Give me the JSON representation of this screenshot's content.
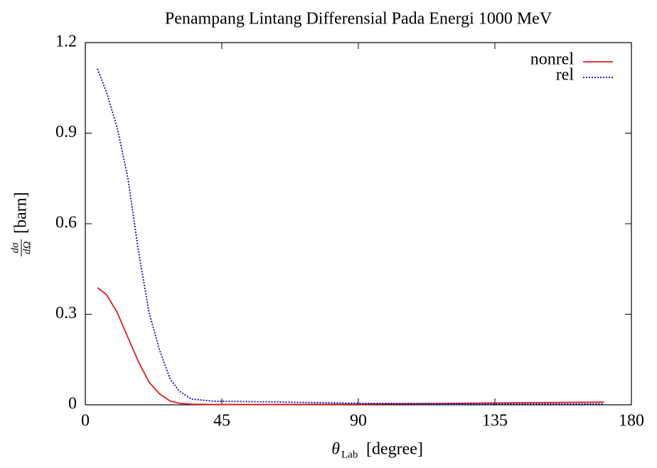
{
  "chart_data": {
    "type": "line",
    "title": "Penampang Lintang Differensial Pada Energi 1000 MeV",
    "x_label": {
      "symbol": "θ",
      "subscript": "Lab",
      "unit": "[degree]"
    },
    "y_label": {
      "numerator": "dσ",
      "denominator": "dΩ",
      "unit": "[barn]"
    },
    "x": [
      4,
      7,
      10.5,
      14,
      17.5,
      21,
      24.5,
      28,
      31,
      35,
      42,
      60,
      90,
      135,
      171
    ],
    "series": [
      {
        "name": "nonrel",
        "color": "#e41a1c",
        "dash": "solid",
        "values": [
          0.388,
          0.365,
          0.306,
          0.224,
          0.143,
          0.075,
          0.036,
          0.012,
          0.005,
          0.002,
          0.001,
          0.001,
          0.002,
          0.006,
          0.009
        ]
      },
      {
        "name": "rel",
        "color": "#0000cc",
        "dash": "dotted",
        "values": [
          1.113,
          1.035,
          0.918,
          0.753,
          0.51,
          0.306,
          0.18,
          0.085,
          0.045,
          0.019,
          0.012,
          0.01,
          0.005,
          0.003,
          0.003
        ]
      }
    ],
    "xlim": [
      0,
      180
    ],
    "xticks": [
      0,
      45,
      90,
      135,
      180
    ],
    "ylim": [
      0,
      1.2
    ],
    "yticks": [
      0,
      0.3,
      0.6,
      0.9,
      1.2
    ],
    "legend": "top right",
    "grid": false
  }
}
